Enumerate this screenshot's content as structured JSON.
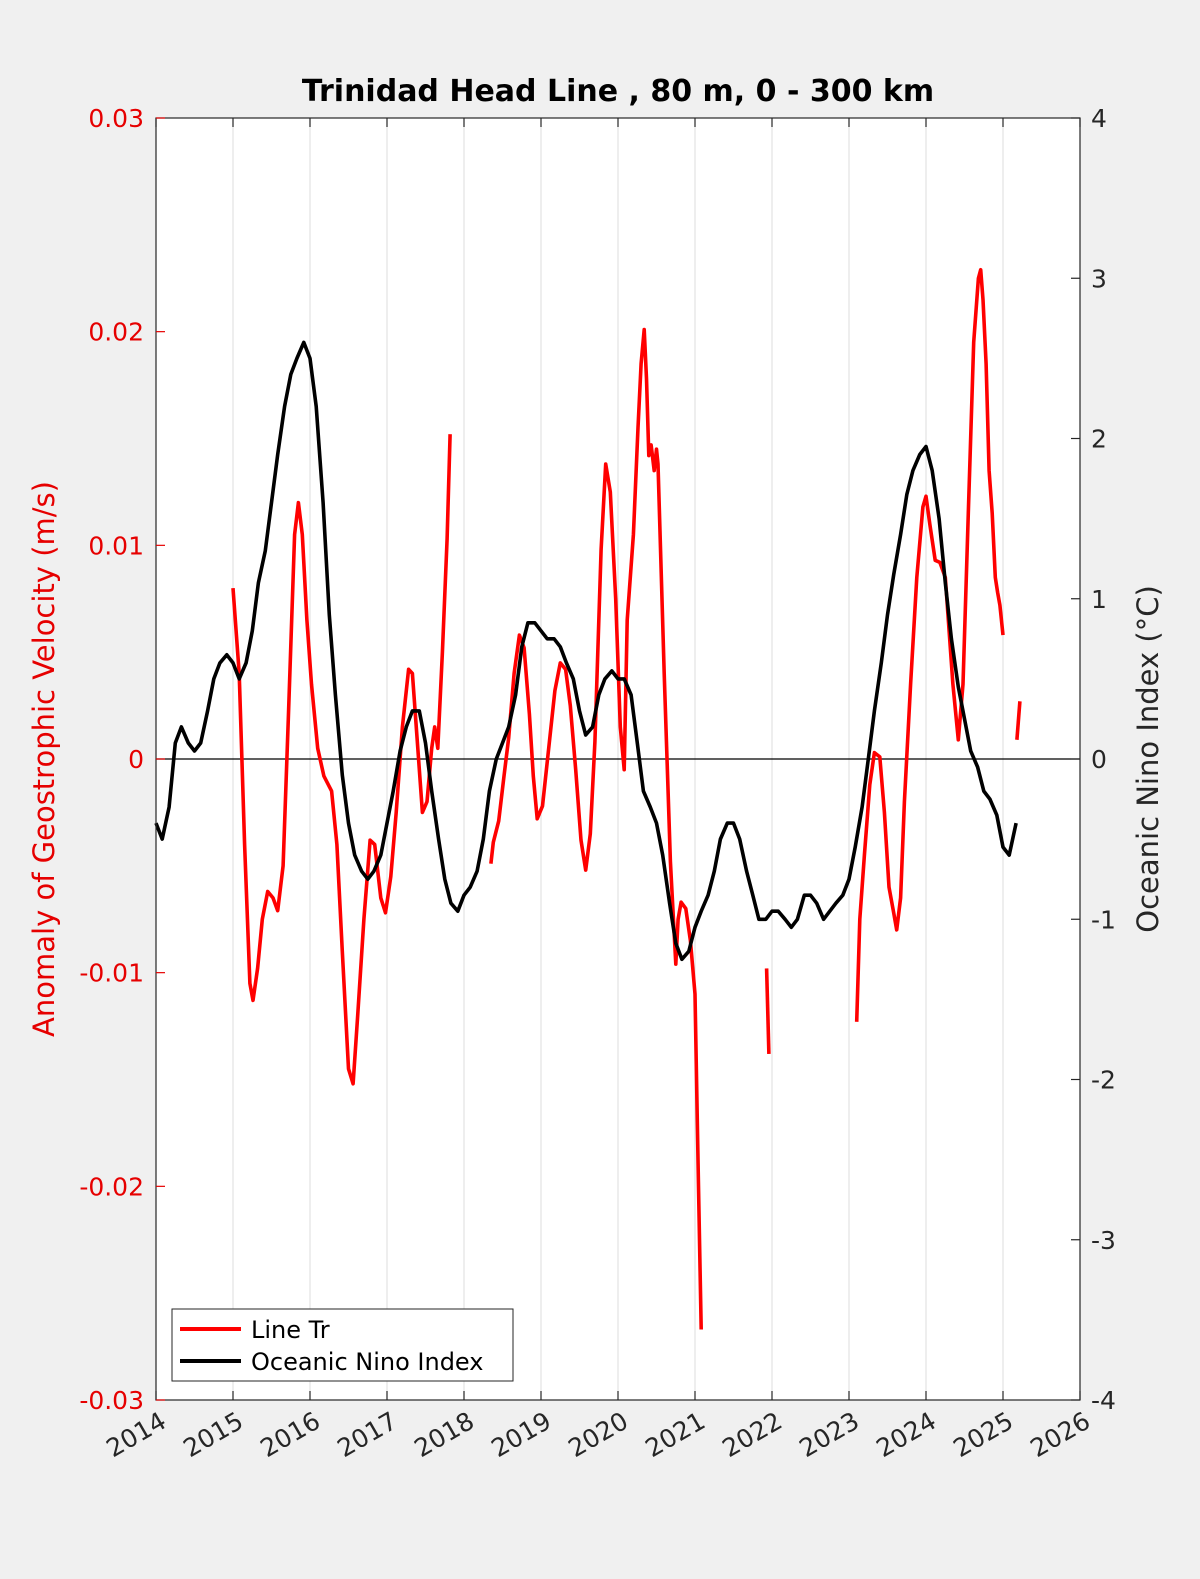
{
  "chart_data": {
    "type": "line",
    "title": "Trinidad Head Line , 80 m, 0 - 300 km",
    "xlabel": "",
    "ylabel": "Anomaly of Geostrophic Velocity (m/s)",
    "y2label": "Oceanic Nino Index (°C)",
    "xlim": [
      2014,
      2026
    ],
    "ylim": [
      -0.03,
      0.03
    ],
    "y2lim": [
      -4,
      4
    ],
    "xticks": [
      2014,
      2015,
      2016,
      2017,
      2018,
      2019,
      2020,
      2021,
      2022,
      2023,
      2024,
      2025,
      2026
    ],
    "xtick_labels": [
      "2014",
      "2015",
      "2016",
      "2017",
      "2018",
      "2019",
      "2020",
      "2021",
      "2022",
      "2023",
      "2024",
      "2025",
      "2026"
    ],
    "yticks": [
      -0.03,
      -0.02,
      -0.01,
      0,
      0.01,
      0.02,
      0.03
    ],
    "ytick_labels": [
      "-0.03",
      "-0.02",
      "-0.01",
      "0",
      "0.01",
      "0.02",
      "0.03"
    ],
    "y2ticks": [
      -4,
      -3,
      -2,
      -1,
      0,
      1,
      2,
      3,
      4
    ],
    "y2tick_labels": [
      "-4",
      "-3",
      "-2",
      "-1",
      "0",
      "1",
      "2",
      "3",
      "4"
    ],
    "grid": "vertical",
    "zero_line": true,
    "legend_position": "bottom-left",
    "series": [
      {
        "name": "Line Tr",
        "axis": "left",
        "color": "#ff0000",
        "segments": [
          [
            [
              2015.0,
              0.008
            ],
            [
              2015.08,
              0.004
            ],
            [
              2015.15,
              -0.004
            ],
            [
              2015.22,
              -0.0105
            ],
            [
              2015.26,
              -0.0113
            ],
            [
              2015.32,
              -0.0098
            ],
            [
              2015.38,
              -0.0075
            ],
            [
              2015.45,
              -0.0062
            ],
            [
              2015.52,
              -0.0065
            ],
            [
              2015.58,
              -0.0071
            ],
            [
              2015.65,
              -0.005
            ],
            [
              2015.72,
              0.002
            ],
            [
              2015.8,
              0.0105
            ],
            [
              2015.85,
              0.012
            ],
            [
              2015.9,
              0.0105
            ],
            [
              2015.96,
              0.0065
            ],
            [
              2016.02,
              0.0035
            ],
            [
              2016.1,
              0.0005
            ],
            [
              2016.18,
              -0.0008
            ],
            [
              2016.28,
              -0.0015
            ],
            [
              2016.35,
              -0.004
            ],
            [
              2016.42,
              -0.009
            ],
            [
              2016.5,
              -0.0145
            ],
            [
              2016.56,
              -0.0152
            ],
            [
              2016.62,
              -0.012
            ],
            [
              2016.7,
              -0.0075
            ],
            [
              2016.78,
              -0.0038
            ],
            [
              2016.84,
              -0.004
            ],
            [
              2016.92,
              -0.0065
            ],
            [
              2016.98,
              -0.0072
            ],
            [
              2017.05,
              -0.0055
            ],
            [
              2017.12,
              -0.0025
            ],
            [
              2017.2,
              0.0015
            ],
            [
              2017.28,
              0.0042
            ],
            [
              2017.33,
              0.004
            ],
            [
              2017.4,
              0.0005
            ],
            [
              2017.46,
              -0.0025
            ],
            [
              2017.52,
              -0.002
            ],
            [
              2017.58,
              0.0005
            ],
            [
              2017.62,
              0.0015
            ],
            [
              2017.66,
              0.0005
            ],
            [
              2017.72,
              0.005
            ],
            [
              2017.78,
              0.0103
            ],
            [
              2017.82,
              0.0152
            ]
          ],
          [
            [
              2018.35,
              -0.0049
            ],
            [
              2018.38,
              -0.0039
            ],
            [
              2018.45,
              -0.0029
            ],
            [
              2018.52,
              -0.0008
            ],
            [
              2018.58,
              0.001
            ],
            [
              2018.65,
              0.004
            ],
            [
              2018.72,
              0.0058
            ],
            [
              2018.78,
              0.0052
            ],
            [
              2018.85,
              0.0021
            ],
            [
              2018.9,
              -0.0008
            ],
            [
              2018.95,
              -0.0028
            ],
            [
              2019.02,
              -0.0022
            ],
            [
              2019.1,
              0.0005
            ],
            [
              2019.18,
              0.0032
            ],
            [
              2019.25,
              0.0045
            ],
            [
              2019.32,
              0.0042
            ],
            [
              2019.38,
              0.0025
            ],
            [
              2019.45,
              -0.0005
            ],
            [
              2019.52,
              -0.0038
            ],
            [
              2019.58,
              -0.0052
            ],
            [
              2019.64,
              -0.0035
            ],
            [
              2019.7,
              0.0008
            ],
            [
              2019.78,
              0.0098
            ],
            [
              2019.84,
              0.0138
            ],
            [
              2019.9,
              0.0125
            ],
            [
              2019.97,
              0.0075
            ],
            [
              2020.03,
              0.0015
            ],
            [
              2020.08,
              -0.0005
            ],
            [
              2020.12,
              0.0065
            ],
            [
              2020.2,
              0.0105
            ],
            [
              2020.26,
              0.0155
            ],
            [
              2020.3,
              0.0185
            ],
            [
              2020.34,
              0.0201
            ],
            [
              2020.37,
              0.0178
            ],
            [
              2020.4,
              0.0142
            ],
            [
              2020.43,
              0.0147
            ],
            [
              2020.47,
              0.0135
            ],
            [
              2020.5,
              0.0145
            ],
            [
              2020.52,
              0.0138
            ],
            [
              2020.6,
              0.004
            ],
            [
              2020.68,
              -0.0048
            ],
            [
              2020.75,
              -0.0096
            ],
            [
              2020.78,
              -0.0075
            ],
            [
              2020.82,
              -0.0067
            ],
            [
              2020.88,
              -0.007
            ],
            [
              2020.94,
              -0.0085
            ],
            [
              2021.0,
              -0.011
            ],
            [
              2021.04,
              -0.019
            ],
            [
              2021.08,
              -0.0267
            ]
          ],
          [
            [
              2021.93,
              -0.0098
            ],
            [
              2021.96,
              -0.0138
            ]
          ],
          [
            [
              2023.1,
              -0.0123
            ],
            [
              2023.14,
              -0.0075
            ],
            [
              2023.2,
              -0.0045
            ],
            [
              2023.27,
              -0.0012
            ],
            [
              2023.33,
              0.0003
            ],
            [
              2023.4,
              0.0001
            ],
            [
              2023.46,
              -0.0025
            ],
            [
              2023.52,
              -0.006
            ],
            [
              2023.58,
              -0.0072
            ],
            [
              2023.62,
              -0.008
            ],
            [
              2023.67,
              -0.0065
            ],
            [
              2023.72,
              -0.002
            ],
            [
              2023.8,
              0.0035
            ],
            [
              2023.88,
              0.0085
            ],
            [
              2023.96,
              0.0118
            ],
            [
              2024.0,
              0.0123
            ],
            [
              2024.05,
              0.011
            ],
            [
              2024.12,
              0.0093
            ],
            [
              2024.18,
              0.0092
            ],
            [
              2024.25,
              0.0085
            ],
            [
              2024.3,
              0.006
            ],
            [
              2024.35,
              0.0035
            ],
            [
              2024.42,
              0.0009
            ],
            [
              2024.48,
              0.0035
            ],
            [
              2024.55,
              0.0115
            ],
            [
              2024.62,
              0.0195
            ],
            [
              2024.68,
              0.0225
            ],
            [
              2024.71,
              0.0229
            ],
            [
              2024.74,
              0.0215
            ],
            [
              2024.78,
              0.0185
            ],
            [
              2024.82,
              0.0135
            ],
            [
              2024.86,
              0.0115
            ],
            [
              2024.9,
              0.0085
            ],
            [
              2024.93,
              0.0078
            ],
            [
              2024.96,
              0.0072
            ],
            [
              2025.0,
              0.0058
            ]
          ],
          [
            [
              2025.18,
              0.0009
            ],
            [
              2025.22,
              0.0027
            ]
          ]
        ]
      },
      {
        "name": "Oceanic Nino Index",
        "axis": "right",
        "color": "#000000",
        "points": [
          [
            2014.0,
            -0.4
          ],
          [
            2014.08,
            -0.5
          ],
          [
            2014.17,
            -0.3
          ],
          [
            2014.25,
            0.1
          ],
          [
            2014.33,
            0.2
          ],
          [
            2014.42,
            0.1
          ],
          [
            2014.5,
            0.05
          ],
          [
            2014.58,
            0.1
          ],
          [
            2014.67,
            0.3
          ],
          [
            2014.75,
            0.5
          ],
          [
            2014.83,
            0.6
          ],
          [
            2014.92,
            0.65
          ],
          [
            2015.0,
            0.6
          ],
          [
            2015.08,
            0.5
          ],
          [
            2015.17,
            0.6
          ],
          [
            2015.25,
            0.8
          ],
          [
            2015.33,
            1.1
          ],
          [
            2015.42,
            1.3
          ],
          [
            2015.5,
            1.6
          ],
          [
            2015.58,
            1.9
          ],
          [
            2015.67,
            2.2
          ],
          [
            2015.75,
            2.4
          ],
          [
            2015.83,
            2.5
          ],
          [
            2015.92,
            2.6
          ],
          [
            2016.0,
            2.5
          ],
          [
            2016.08,
            2.2
          ],
          [
            2016.17,
            1.6
          ],
          [
            2016.25,
            0.9
          ],
          [
            2016.33,
            0.4
          ],
          [
            2016.42,
            -0.1
          ],
          [
            2016.5,
            -0.4
          ],
          [
            2016.58,
            -0.6
          ],
          [
            2016.67,
            -0.7
          ],
          [
            2016.75,
            -0.75
          ],
          [
            2016.83,
            -0.7
          ],
          [
            2016.92,
            -0.6
          ],
          [
            2017.0,
            -0.4
          ],
          [
            2017.08,
            -0.2
          ],
          [
            2017.17,
            0.05
          ],
          [
            2017.25,
            0.2
          ],
          [
            2017.33,
            0.3
          ],
          [
            2017.42,
            0.3
          ],
          [
            2017.5,
            0.1
          ],
          [
            2017.58,
            -0.2
          ],
          [
            2017.67,
            -0.5
          ],
          [
            2017.75,
            -0.75
          ],
          [
            2017.83,
            -0.9
          ],
          [
            2017.92,
            -0.95
          ],
          [
            2018.0,
            -0.85
          ],
          [
            2018.08,
            -0.8
          ],
          [
            2018.17,
            -0.7
          ],
          [
            2018.25,
            -0.5
          ],
          [
            2018.33,
            -0.2
          ],
          [
            2018.42,
            0.0
          ],
          [
            2018.5,
            0.1
          ],
          [
            2018.58,
            0.2
          ],
          [
            2018.67,
            0.4
          ],
          [
            2018.75,
            0.7
          ],
          [
            2018.83,
            0.85
          ],
          [
            2018.92,
            0.85
          ],
          [
            2019.0,
            0.8
          ],
          [
            2019.08,
            0.75
          ],
          [
            2019.17,
            0.75
          ],
          [
            2019.25,
            0.7
          ],
          [
            2019.33,
            0.6
          ],
          [
            2019.42,
            0.5
          ],
          [
            2019.5,
            0.3
          ],
          [
            2019.58,
            0.15
          ],
          [
            2019.67,
            0.2
          ],
          [
            2019.75,
            0.4
          ],
          [
            2019.83,
            0.5
          ],
          [
            2019.92,
            0.55
          ],
          [
            2020.0,
            0.5
          ],
          [
            2020.08,
            0.5
          ],
          [
            2020.17,
            0.4
          ],
          [
            2020.25,
            0.1
          ],
          [
            2020.33,
            -0.2
          ],
          [
            2020.42,
            -0.3
          ],
          [
            2020.5,
            -0.4
          ],
          [
            2020.58,
            -0.6
          ],
          [
            2020.67,
            -0.9
          ],
          [
            2020.75,
            -1.15
          ],
          [
            2020.83,
            -1.25
          ],
          [
            2020.92,
            -1.2
          ],
          [
            2021.0,
            -1.05
          ],
          [
            2021.08,
            -0.95
          ],
          [
            2021.17,
            -0.85
          ],
          [
            2021.25,
            -0.7
          ],
          [
            2021.33,
            -0.5
          ],
          [
            2021.42,
            -0.4
          ],
          [
            2021.5,
            -0.4
          ],
          [
            2021.58,
            -0.5
          ],
          [
            2021.67,
            -0.7
          ],
          [
            2021.75,
            -0.85
          ],
          [
            2021.83,
            -1.0
          ],
          [
            2021.92,
            -1.0
          ],
          [
            2022.0,
            -0.95
          ],
          [
            2022.08,
            -0.95
          ],
          [
            2022.17,
            -1.0
          ],
          [
            2022.25,
            -1.05
          ],
          [
            2022.33,
            -1.0
          ],
          [
            2022.42,
            -0.85
          ],
          [
            2022.5,
            -0.85
          ],
          [
            2022.58,
            -0.9
          ],
          [
            2022.67,
            -1.0
          ],
          [
            2022.75,
            -0.95
          ],
          [
            2022.83,
            -0.9
          ],
          [
            2022.92,
            -0.85
          ],
          [
            2023.0,
            -0.75
          ],
          [
            2023.08,
            -0.55
          ],
          [
            2023.17,
            -0.3
          ],
          [
            2023.25,
            0.0
          ],
          [
            2023.33,
            0.3
          ],
          [
            2023.42,
            0.6
          ],
          [
            2023.5,
            0.9
          ],
          [
            2023.58,
            1.15
          ],
          [
            2023.67,
            1.4
          ],
          [
            2023.75,
            1.65
          ],
          [
            2023.83,
            1.8
          ],
          [
            2023.92,
            1.9
          ],
          [
            2024.0,
            1.95
          ],
          [
            2024.08,
            1.8
          ],
          [
            2024.17,
            1.5
          ],
          [
            2024.25,
            1.1
          ],
          [
            2024.33,
            0.75
          ],
          [
            2024.42,
            0.45
          ],
          [
            2024.5,
            0.25
          ],
          [
            2024.58,
            0.05
          ],
          [
            2024.67,
            -0.05
          ],
          [
            2024.75,
            -0.2
          ],
          [
            2024.83,
            -0.25
          ],
          [
            2024.92,
            -0.35
          ],
          [
            2025.0,
            -0.55
          ],
          [
            2025.08,
            -0.6
          ],
          [
            2025.17,
            -0.4
          ]
        ]
      }
    ]
  }
}
